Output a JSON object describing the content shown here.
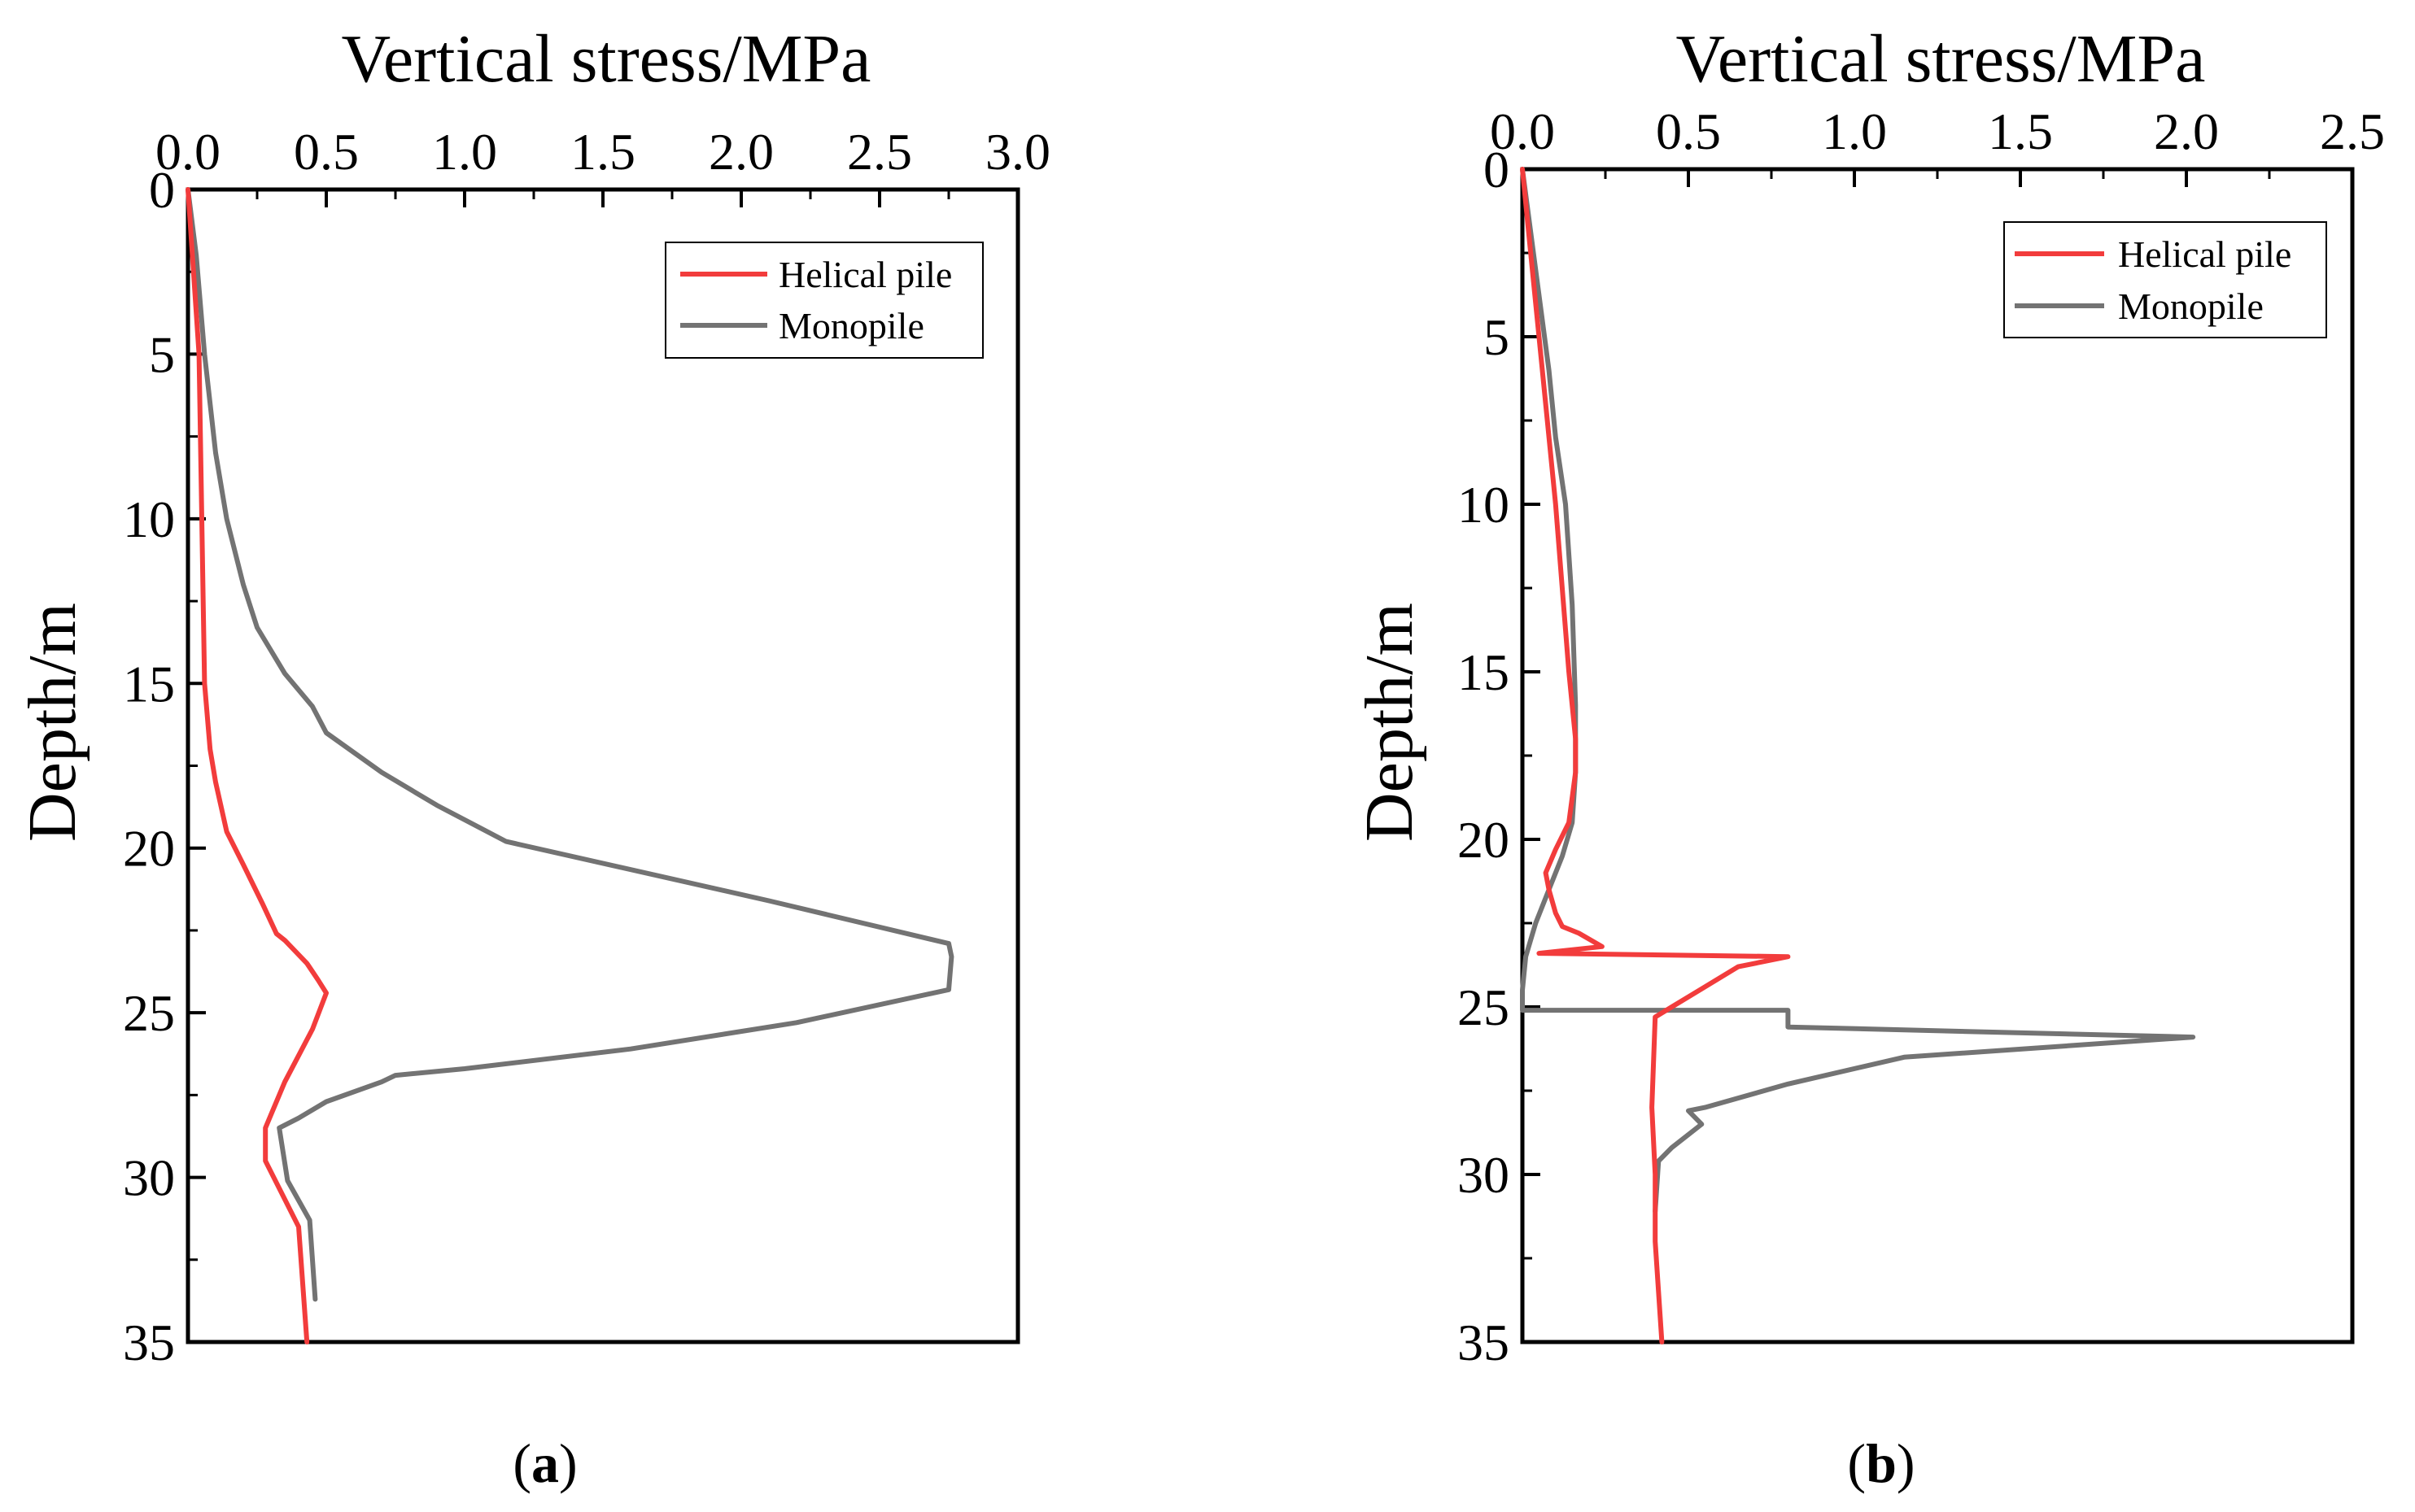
{
  "chart_data": [
    {
      "type": "line",
      "panel_label": "a",
      "xlabel": "Vertical stress/MPa",
      "ylabel": "Depth/m",
      "xlim": [
        0,
        3.0
      ],
      "ylim": [
        0,
        35
      ],
      "y_inverted": true,
      "x_axis_position": "top",
      "x_ticks": [
        "0.0",
        "0.5",
        "1.0",
        "1.5",
        "2.0",
        "2.5",
        "3.0"
      ],
      "x_tick_values": [
        0,
        0.5,
        1.0,
        1.5,
        2.0,
        2.5,
        3.0
      ],
      "y_ticks": [
        "0",
        "5",
        "10",
        "15",
        "20",
        "25",
        "30",
        "35"
      ],
      "y_tick_values": [
        0,
        5,
        10,
        15,
        20,
        25,
        30,
        35
      ],
      "grid": false,
      "legend_position": "top-right",
      "series": [
        {
          "name": "Helical pile",
          "color": "#f23c3c",
          "points": [
            [
              0,
              0
            ],
            [
              0.04,
              5
            ],
            [
              0.05,
              10
            ],
            [
              0.06,
              15
            ],
            [
              0.08,
              17
            ],
            [
              0.1,
              18
            ],
            [
              0.14,
              19.5
            ],
            [
              0.2,
              20.5
            ],
            [
              0.27,
              21.7
            ],
            [
              0.32,
              22.6
            ],
            [
              0.35,
              22.8
            ],
            [
              0.43,
              23.5
            ],
            [
              0.47,
              24
            ],
            [
              0.5,
              24.4
            ],
            [
              0.45,
              25.5
            ],
            [
              0.4,
              26.3
            ],
            [
              0.35,
              27.1
            ],
            [
              0.3,
              28.1
            ],
            [
              0.28,
              28.5
            ],
            [
              0.28,
              29.5
            ],
            [
              0.4,
              31.5
            ],
            [
              0.43,
              35
            ]
          ]
        },
        {
          "name": "Monopile",
          "color": "#737373",
          "points": [
            [
              0,
              0
            ],
            [
              0.03,
              2
            ],
            [
              0.06,
              5
            ],
            [
              0.1,
              8
            ],
            [
              0.14,
              10
            ],
            [
              0.2,
              12
            ],
            [
              0.25,
              13.3
            ],
            [
              0.35,
              14.7
            ],
            [
              0.45,
              15.7
            ],
            [
              0.5,
              16.5
            ],
            [
              0.7,
              17.7
            ],
            [
              0.9,
              18.7
            ],
            [
              1.15,
              19.8
            ],
            [
              2.1,
              21.6
            ],
            [
              2.75,
              22.9
            ],
            [
              2.76,
              23.3
            ],
            [
              2.75,
              24.3
            ],
            [
              2.2,
              25.3
            ],
            [
              1.6,
              26.1
            ],
            [
              1.0,
              26.7
            ],
            [
              0.75,
              26.9
            ],
            [
              0.7,
              27.1
            ],
            [
              0.5,
              27.7
            ],
            [
              0.4,
              28.2
            ],
            [
              0.33,
              28.5
            ],
            [
              0.36,
              30.1
            ],
            [
              0.44,
              31.3
            ],
            [
              0.46,
              33.7
            ]
          ]
        }
      ]
    },
    {
      "type": "line",
      "panel_label": "b",
      "xlabel": "Vertical stress/MPa",
      "ylabel": "Depth/m",
      "xlim": [
        0,
        2.5
      ],
      "ylim": [
        0,
        35
      ],
      "y_inverted": true,
      "x_axis_position": "top",
      "x_ticks": [
        "0.0",
        "0.5",
        "1.0",
        "1.5",
        "2.0",
        "2.5"
      ],
      "x_tick_values": [
        0,
        0.5,
        1.0,
        1.5,
        2.0,
        2.5
      ],
      "y_ticks": [
        "0",
        "5",
        "10",
        "15",
        "20",
        "25",
        "30",
        "35"
      ],
      "y_tick_values": [
        0,
        5,
        10,
        15,
        20,
        25,
        30,
        35
      ],
      "grid": false,
      "legend_position": "top-right",
      "series": [
        {
          "name": "Helical pile",
          "color": "#f23c3c",
          "points": [
            [
              0,
              0
            ],
            [
              0.03,
              3
            ],
            [
              0.06,
              6
            ],
            [
              0.1,
              10
            ],
            [
              0.14,
              15
            ],
            [
              0.16,
              17
            ],
            [
              0.16,
              18
            ],
            [
              0.14,
              19.5
            ],
            [
              0.1,
              20.3
            ],
            [
              0.07,
              21
            ],
            [
              0.08,
              21.5
            ],
            [
              0.1,
              22.2
            ],
            [
              0.12,
              22.6
            ],
            [
              0.17,
              22.8
            ],
            [
              0.24,
              23.2
            ],
            [
              0.05,
              23.4
            ],
            [
              0.8,
              23.5
            ],
            [
              0.65,
              23.8
            ],
            [
              0.55,
              24.4
            ],
            [
              0.45,
              25
            ],
            [
              0.4,
              25.3
            ],
            [
              0.39,
              28
            ],
            [
              0.4,
              30
            ],
            [
              0.4,
              32
            ],
            [
              0.42,
              35
            ]
          ]
        },
        {
          "name": "Monopile",
          "color": "#737373",
          "points": [
            [
              0,
              0
            ],
            [
              0.04,
              3
            ],
            [
              0.08,
              6
            ],
            [
              0.1,
              8
            ],
            [
              0.13,
              10
            ],
            [
              0.15,
              13
            ],
            [
              0.16,
              16
            ],
            [
              0.16,
              18
            ],
            [
              0.15,
              19.5
            ],
            [
              0.12,
              20.5
            ],
            [
              0.08,
              21.5
            ],
            [
              0.04,
              22.5
            ],
            [
              0.01,
              23.5
            ],
            [
              0,
              24.5
            ],
            [
              0,
              25.1
            ],
            [
              0.8,
              25.1
            ],
            [
              0.8,
              25.6
            ],
            [
              2.02,
              25.9
            ],
            [
              1.15,
              26.5
            ],
            [
              0.8,
              27.3
            ],
            [
              0.55,
              28
            ],
            [
              0.5,
              28.1
            ],
            [
              0.54,
              28.5
            ],
            [
              0.45,
              29.2
            ],
            [
              0.41,
              29.6
            ],
            [
              0.4,
              31.1
            ]
          ]
        }
      ]
    }
  ]
}
